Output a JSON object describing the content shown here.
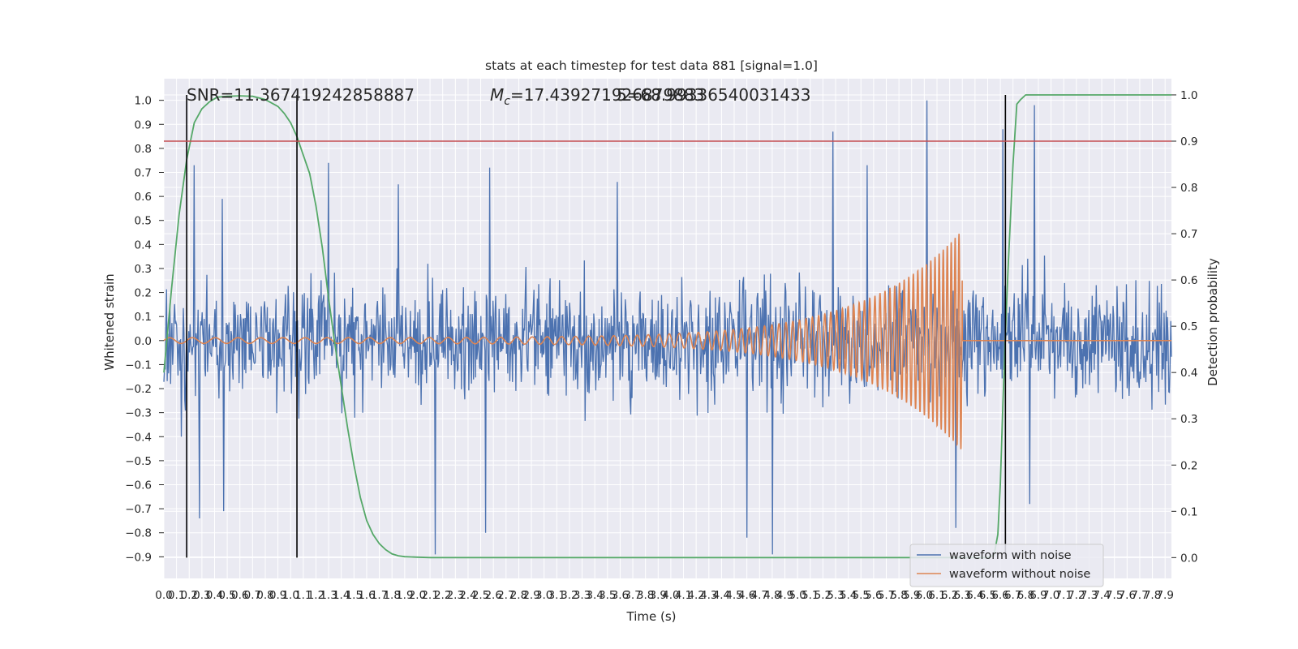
{
  "chart_data": {
    "type": "line",
    "title": "stats at each timestep for test data 881 [signal=1.0]",
    "xlabel": "Time (s)",
    "ylabel": "Whitened strain",
    "y2label": "Detection probability",
    "xlim": [
      0.0,
      7.95
    ],
    "ylim": [
      -0.99,
      1.09
    ],
    "y2lim": [
      -0.045,
      1.035
    ],
    "x_ticks": [
      "0.0",
      "0.1",
      "0.2",
      "0.3",
      "0.4",
      "0.5",
      "0.6",
      "0.7",
      "0.8",
      "0.9",
      "1.0",
      "1.1",
      "1.2",
      "1.3",
      "1.4",
      "1.5",
      "1.6",
      "1.7",
      "1.8",
      "1.9",
      "2.0",
      "2.1",
      "2.2",
      "2.3",
      "2.4",
      "2.5",
      "2.6",
      "2.7",
      "2.8",
      "2.9",
      "3.0",
      "3.1",
      "3.2",
      "3.3",
      "3.4",
      "3.5",
      "3.6",
      "3.7",
      "3.8",
      "3.9",
      "4.0",
      "4.1",
      "4.2",
      "4.3",
      "4.4",
      "4.5",
      "4.6",
      "4.7",
      "4.8",
      "4.9",
      "5.0",
      "5.1",
      "5.2",
      "5.3",
      "5.4",
      "5.5",
      "5.6",
      "5.7",
      "5.8",
      "5.9",
      "6.0",
      "6.1",
      "6.2",
      "6.3",
      "6.4",
      "6.5",
      "6.6",
      "6.7",
      "6.8",
      "6.9",
      "7.0",
      "7.1",
      "7.2",
      "7.3",
      "7.4",
      "7.5",
      "7.6",
      "7.7",
      "7.8",
      "7.9"
    ],
    "y_ticks": [
      "1.0",
      "0.9",
      "0.8",
      "0.7",
      "0.6",
      "0.5",
      "0.4",
      "0.3",
      "0.2",
      "0.1",
      "0.0",
      "−0.1",
      "−0.2",
      "−0.3",
      "−0.4",
      "−0.5",
      "−0.6",
      "−0.7",
      "−0.8",
      "−0.9"
    ],
    "y2_ticks": [
      "1.0",
      "0.9",
      "0.8",
      "0.7",
      "0.6",
      "0.5",
      "0.4",
      "0.3",
      "0.2",
      "0.1",
      "0.0"
    ],
    "annotations": [
      {
        "text": "SNR=11.367419242858887"
      },
      {
        "text": "M_c=17.439271926879883",
        "symbol": "M",
        "subscript": "c",
        "value": "=17.439271926879883"
      },
      {
        "text": "5=68.99336540031433"
      }
    ],
    "threshold": {
      "axis": "y2",
      "value": 0.9,
      "color": "#c44e52"
    },
    "vertical_lines": [
      0.18,
      1.05,
      6.64
    ],
    "grid": true,
    "legend_placement": "lower-right",
    "series": [
      {
        "name": "waveform with noise",
        "color": "#4c72b0",
        "description_only": "dense gaussian-like noise, envelope approx -0.45..0.45 with spikes",
        "spikes": [
          {
            "x": 0.14,
            "y": -0.4
          },
          {
            "x": 0.24,
            "y": 0.73
          },
          {
            "x": 0.28,
            "y": -0.74
          },
          {
            "x": 0.46,
            "y": 0.59
          },
          {
            "x": 0.47,
            "y": -0.71
          },
          {
            "x": 1.3,
            "y": 0.74
          },
          {
            "x": 1.85,
            "y": 0.65
          },
          {
            "x": 2.14,
            "y": -0.89
          },
          {
            "x": 2.54,
            "y": -0.8
          },
          {
            "x": 2.57,
            "y": 0.72
          },
          {
            "x": 3.58,
            "y": 0.66
          },
          {
            "x": 4.6,
            "y": -0.82
          },
          {
            "x": 4.8,
            "y": -0.89
          },
          {
            "x": 5.28,
            "y": 0.87
          },
          {
            "x": 5.55,
            "y": 0.73
          },
          {
            "x": 6.02,
            "y": 1.0
          },
          {
            "x": 6.25,
            "y": -0.78
          },
          {
            "x": 6.62,
            "y": 0.88
          },
          {
            "x": 6.87,
            "y": 0.98
          },
          {
            "x": 6.83,
            "y": -0.68
          }
        ]
      },
      {
        "name": "waveform without noise",
        "color": "#dd8452",
        "chirp": {
          "start": 0.0,
          "merger": 6.3,
          "end_amplitude": 0.4,
          "start_amplitude": 0.012,
          "f_start": 4.5,
          "f_end": 30
        }
      },
      {
        "name": "",
        "axis": "y2",
        "color": "#55a868",
        "x": [
          0.0,
          0.06,
          0.12,
          0.18,
          0.24,
          0.3,
          0.36,
          0.42,
          0.5,
          0.6,
          0.7,
          0.8,
          0.9,
          0.95,
          1.0,
          1.05,
          1.1,
          1.15,
          1.2,
          1.25,
          1.3,
          1.35,
          1.4,
          1.45,
          1.5,
          1.55,
          1.6,
          1.65,
          1.7,
          1.75,
          1.8,
          1.85,
          1.9,
          2.0,
          2.1,
          2.2,
          6.5,
          6.55,
          6.58,
          6.6,
          6.62,
          6.64,
          6.66,
          6.7,
          6.73,
          6.76,
          6.8,
          6.9,
          7.95
        ],
        "y": [
          0.4,
          0.58,
          0.74,
          0.86,
          0.94,
          0.97,
          0.985,
          0.995,
          0.997,
          0.998,
          0.997,
          0.99,
          0.975,
          0.96,
          0.94,
          0.91,
          0.87,
          0.83,
          0.76,
          0.67,
          0.56,
          0.46,
          0.37,
          0.28,
          0.2,
          0.13,
          0.08,
          0.05,
          0.03,
          0.017,
          0.008,
          0.004,
          0.002,
          0.001,
          0.0,
          0.0,
          0.0,
          0.005,
          0.05,
          0.16,
          0.33,
          0.48,
          0.62,
          0.85,
          0.98,
          0.99,
          1.0,
          1.0,
          1.0
        ]
      }
    ]
  }
}
